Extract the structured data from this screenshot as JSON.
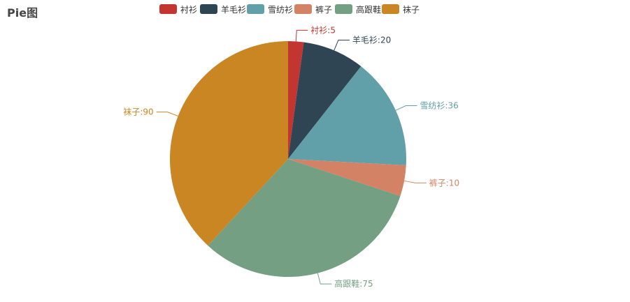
{
  "chart_data": {
    "type": "pie",
    "title": "Pie图",
    "categories": [
      "衬衫",
      "羊毛衫",
      "雪纺衫",
      "裤子",
      "高跟鞋",
      "袜子"
    ],
    "values": [
      5,
      20,
      36,
      10,
      75,
      90
    ],
    "colors": [
      "#c23531",
      "#2f4554",
      "#61a0a8",
      "#d48265",
      "#749f83",
      "#ca8622"
    ],
    "legend_position": "top",
    "label_format": "{name}:{value}"
  }
}
